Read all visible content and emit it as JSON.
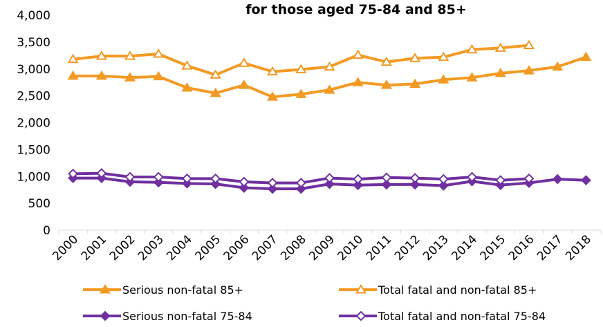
{
  "chart_data": {
    "type": "line",
    "title": "for those aged 75-84 and 85+",
    "xlabel": "",
    "ylabel": "",
    "ylim": [
      0,
      4000
    ],
    "yticks": [
      "0",
      "500",
      "1,000",
      "1,500",
      "2,000",
      "2,500",
      "3,000",
      "3,500",
      "4,000"
    ],
    "categories": [
      "2000",
      "2001",
      "2002",
      "2003",
      "2004",
      "2005",
      "2006",
      "2007",
      "2008",
      "2009",
      "2010",
      "2011",
      "2012",
      "2013",
      "2014",
      "2015",
      "2016",
      "2017",
      "2018"
    ],
    "grid": false,
    "legend_position": "bottom",
    "series": [
      {
        "name": "Serious non-fatal 85+",
        "color": "#F39A24",
        "marker": "filled-triangle",
        "values": [
          2870,
          2870,
          2840,
          2860,
          2650,
          2550,
          2700,
          2480,
          2530,
          2610,
          2750,
          2700,
          2720,
          2800,
          2840,
          2920,
          2970,
          3040,
          3220
        ]
      },
      {
        "name": "Total fatal and non-fatal 85+",
        "color": "#F39A24",
        "marker": "hollow-triangle",
        "values": [
          3180,
          3240,
          3240,
          3280,
          3060,
          2890,
          3110,
          2950,
          2990,
          3040,
          3260,
          3130,
          3200,
          3220,
          3360,
          3390,
          3440,
          null,
          null
        ]
      },
      {
        "name": "Serious non-fatal 75-84",
        "color": "#7030A0",
        "marker": "filled-diamond",
        "values": [
          970,
          970,
          900,
          890,
          870,
          860,
          790,
          770,
          770,
          860,
          840,
          850,
          850,
          830,
          910,
          840,
          880,
          950,
          930
        ]
      },
      {
        "name": "Total fatal and non-fatal 75-84",
        "color": "#7030A0",
        "marker": "hollow-diamond",
        "values": [
          1050,
          1060,
          990,
          990,
          960,
          960,
          900,
          880,
          880,
          970,
          950,
          980,
          970,
          950,
          990,
          930,
          960,
          null,
          null
        ]
      }
    ]
  }
}
